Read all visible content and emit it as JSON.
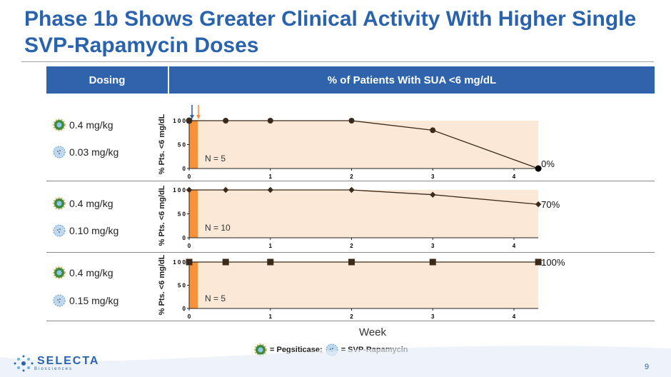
{
  "title": "Phase 1b Shows Greater Clinical Activity With Higher Single SVP-Rapamycin Doses",
  "table": {
    "col_dosing": "Dosing",
    "col_pct": "% of Patients With SUA <6 mg/dL"
  },
  "rows": [
    {
      "pegsiticase_dose": "0.4 mg/kg",
      "svp_dose": "0.03 mg/kg"
    },
    {
      "pegsiticase_dose": "0.4 mg/kg",
      "svp_dose": "0.10 mg/kg"
    },
    {
      "pegsiticase_dose": "0.4 mg/kg",
      "svp_dose": "0.15 mg/kg"
    }
  ],
  "colors": {
    "title": "#2a63ad",
    "header_bg": "#2f64ad",
    "shade": "#fce8d6",
    "dose_bar": "#f7923b",
    "line": "#3b2a1a"
  },
  "chart_data": [
    {
      "type": "line",
      "marker": "circle",
      "ylabel": "% Pts. <6 mg/dL",
      "x": [
        0,
        0.45,
        1,
        2,
        3,
        4.3
      ],
      "values": [
        100,
        100,
        100,
        100,
        80,
        0
      ],
      "xticks": [
        "0",
        "1",
        "2",
        "3",
        "4"
      ],
      "yticks": [
        "0",
        "5 0",
        "1 0 0"
      ],
      "xlim": [
        0,
        4.3
      ],
      "ylim": [
        0,
        100
      ],
      "annotation": "N = 5",
      "end_label": "0%",
      "arrows": [
        "SVP-Rapamycin dose",
        "Pegsiticase dose"
      ]
    },
    {
      "type": "line",
      "marker": "diamond",
      "ylabel": "% Pts. <6 mg/dL",
      "x": [
        0,
        0.45,
        1,
        2,
        3,
        4.3
      ],
      "values": [
        100,
        100,
        100,
        100,
        90,
        70
      ],
      "xticks": [
        "0",
        "1",
        "2",
        "3",
        "4"
      ],
      "yticks": [
        "0",
        "5 0",
        "1 0 0"
      ],
      "xlim": [
        0,
        4.3
      ],
      "ylim": [
        0,
        100
      ],
      "annotation": "N = 10",
      "end_label": "70%"
    },
    {
      "type": "line",
      "marker": "square",
      "ylabel": "% Pts. <6 mg/dL",
      "x": [
        0,
        0.45,
        1,
        2,
        3,
        4.3
      ],
      "values": [
        100,
        100,
        100,
        100,
        100,
        100
      ],
      "xticks": [
        "0",
        "1",
        "2",
        "3",
        "4"
      ],
      "yticks": [
        "0",
        "5 0",
        "1 0 0"
      ],
      "xlim": [
        0,
        4.3
      ],
      "ylim": [
        0,
        100
      ],
      "annotation": "N = 5",
      "end_label": "100%"
    }
  ],
  "xaxis_label": "Week",
  "legend": {
    "pegsiticase": "= Pegsiticase;",
    "svp": "= SVP-Rapamycin"
  },
  "footer": {
    "logo": "SELECTA",
    "logo_sub": "Biosciences",
    "page": "9"
  }
}
